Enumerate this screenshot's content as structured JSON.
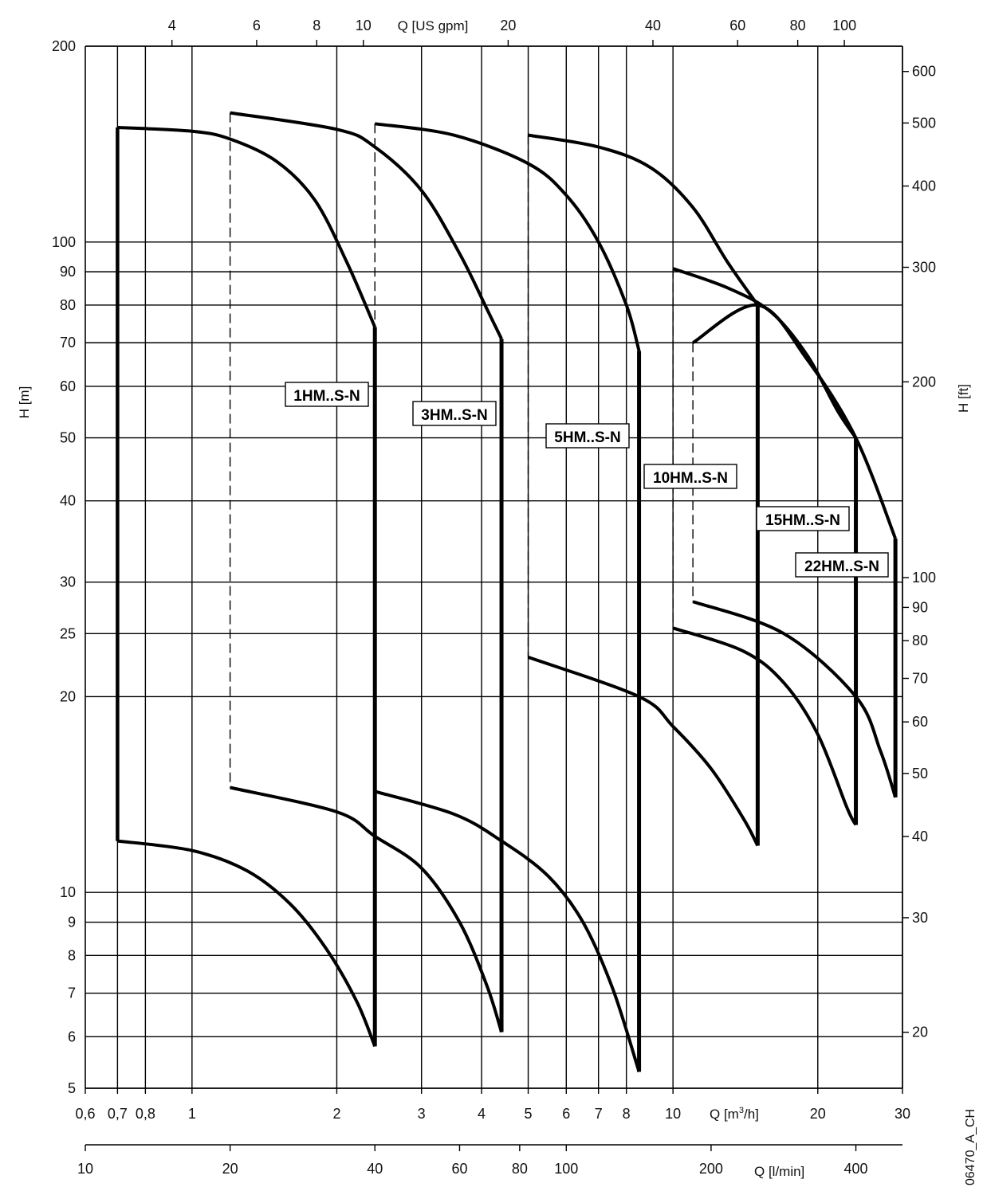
{
  "chart_data": {
    "type": "line",
    "y_left": {
      "label": "H [m]",
      "scale": "log",
      "range": [
        5,
        200
      ],
      "ticks": [
        5,
        6,
        7,
        8,
        9,
        10,
        20,
        25,
        30,
        40,
        50,
        60,
        70,
        80,
        90,
        100,
        200
      ],
      "tick_labels": [
        "5",
        "6",
        "7",
        "8",
        "9",
        "10",
        "20",
        "25",
        "30",
        "40",
        "50",
        "60",
        "70",
        "80",
        "90",
        "100",
        "200"
      ]
    },
    "y_right": {
      "label": "H [ft]",
      "scale": "log",
      "ticks": [
        20,
        30,
        40,
        50,
        60,
        70,
        80,
        90,
        100,
        200,
        300,
        400,
        500,
        600
      ],
      "tick_labels": [
        "20",
        "30",
        "40",
        "50",
        "60",
        "70",
        "80",
        "90",
        "100",
        "200",
        "300",
        "400",
        "500",
        "600"
      ]
    },
    "x_bottom": {
      "label_prefix": "Q [m",
      "label_sup": "3",
      "label_suffix": "/h]",
      "scale": "log",
      "range": [
        0.6,
        30
      ],
      "ticks": [
        0.6,
        0.7,
        0.8,
        1,
        2,
        3,
        4,
        5,
        6,
        7,
        8,
        10,
        20,
        30
      ],
      "tick_labels": [
        "0,6",
        "0,7",
        "0,8",
        "1",
        "2",
        "3",
        "4",
        "5",
        "6",
        "7",
        "8",
        "10",
        "20",
        "30"
      ]
    },
    "x_top": {
      "label": "Q [US gpm]",
      "ticks": [
        4,
        6,
        8,
        10,
        20,
        40,
        60,
        80,
        100
      ],
      "tick_labels": [
        "4",
        "6",
        "8",
        "10",
        "20",
        "40",
        "60",
        "80",
        "100"
      ]
    },
    "x_lmin": {
      "label": "Q [l/min]",
      "ticks": [
        10,
        20,
        40,
        60,
        80,
        100,
        200,
        400
      ],
      "tick_labels": [
        "10",
        "20",
        "40",
        "60",
        "80",
        "100",
        "200",
        "400"
      ]
    },
    "grid": true,
    "vertical_gridlines_q": [
      0.7,
      0.8,
      1,
      2,
      3,
      4,
      5,
      6,
      7,
      8,
      10,
      20,
      30
    ],
    "series": [
      {
        "name": "1HM..S-N",
        "q_range": [
          0.7,
          2.4
        ],
        "upper": [
          [
            0.7,
            150
          ],
          [
            1,
            148
          ],
          [
            1.2,
            144
          ],
          [
            1.5,
            133
          ],
          [
            1.8,
            116
          ],
          [
            2.1,
            93
          ],
          [
            2.4,
            74
          ]
        ],
        "lower": [
          [
            0.7,
            12
          ],
          [
            1,
            11.6
          ],
          [
            1.3,
            10.8
          ],
          [
            1.6,
            9.6
          ],
          [
            1.9,
            8.2
          ],
          [
            2.2,
            6.8
          ],
          [
            2.4,
            5.8
          ]
        ]
      },
      {
        "name": "3HM..S-N",
        "q_range": [
          1.2,
          4.4
        ],
        "upper": [
          [
            1.2,
            158
          ],
          [
            2,
            149
          ],
          [
            2.4,
            140
          ],
          [
            3,
            120
          ],
          [
            3.6,
            96
          ],
          [
            4.1,
            79
          ],
          [
            4.4,
            71
          ]
        ],
        "lower": [
          [
            1.2,
            14.5
          ],
          [
            2,
            13.3
          ],
          [
            2.4,
            12.2
          ],
          [
            3,
            10.9
          ],
          [
            3.6,
            9
          ],
          [
            4.1,
            7.2
          ],
          [
            4.4,
            6.1
          ]
        ]
      },
      {
        "name": "5HM..S-N",
        "q_range": [
          2.4,
          8.5
        ],
        "upper": [
          [
            2.4,
            152
          ],
          [
            3.5,
            146
          ],
          [
            5,
            132
          ],
          [
            6,
            118
          ],
          [
            7,
            100
          ],
          [
            8,
            80
          ],
          [
            8.5,
            68
          ]
        ],
        "lower": [
          [
            2.4,
            14.3
          ],
          [
            3.5,
            13.2
          ],
          [
            4.4,
            12
          ],
          [
            5.5,
            10.6
          ],
          [
            6.5,
            9
          ],
          [
            7.5,
            7.1
          ],
          [
            8.5,
            5.3
          ]
        ]
      },
      {
        "name": "10HM..S-N",
        "q_range": [
          5,
          15
        ],
        "upper": [
          [
            5,
            146
          ],
          [
            7,
            140
          ],
          [
            9,
            130
          ],
          [
            11,
            113
          ],
          [
            13,
            93
          ],
          [
            15,
            80
          ]
        ],
        "lower": [
          [
            5,
            23
          ],
          [
            8.5,
            20
          ],
          [
            10,
            18
          ],
          [
            12,
            15.5
          ],
          [
            14,
            13
          ],
          [
            15,
            11.8
          ]
        ]
      },
      {
        "name": "15HM..S-N",
        "q_range": [
          10,
          24
        ],
        "upper": [
          [
            10,
            91
          ],
          [
            13,
            85
          ],
          [
            16,
            78
          ],
          [
            19,
            67
          ],
          [
            22,
            55
          ],
          [
            24,
            50
          ]
        ],
        "lower": [
          [
            10,
            25.5
          ],
          [
            14,
            23.5
          ],
          [
            17,
            21
          ],
          [
            20,
            17.5
          ],
          [
            23,
            13.5
          ],
          [
            24,
            12.7
          ]
        ]
      },
      {
        "name": "22HM..S-N",
        "q_range": [
          11,
          29
        ],
        "upper": [
          [
            11,
            70
          ],
          [
            15,
            80
          ],
          [
            19,
            66
          ],
          [
            24,
            50
          ],
          [
            29,
            35
          ]
        ],
        "lower": [
          [
            11,
            28
          ],
          [
            17,
            25
          ],
          [
            24,
            20
          ],
          [
            27,
            16.5
          ],
          [
            29,
            14
          ]
        ]
      }
    ],
    "annotation": "06470_A_CH"
  }
}
